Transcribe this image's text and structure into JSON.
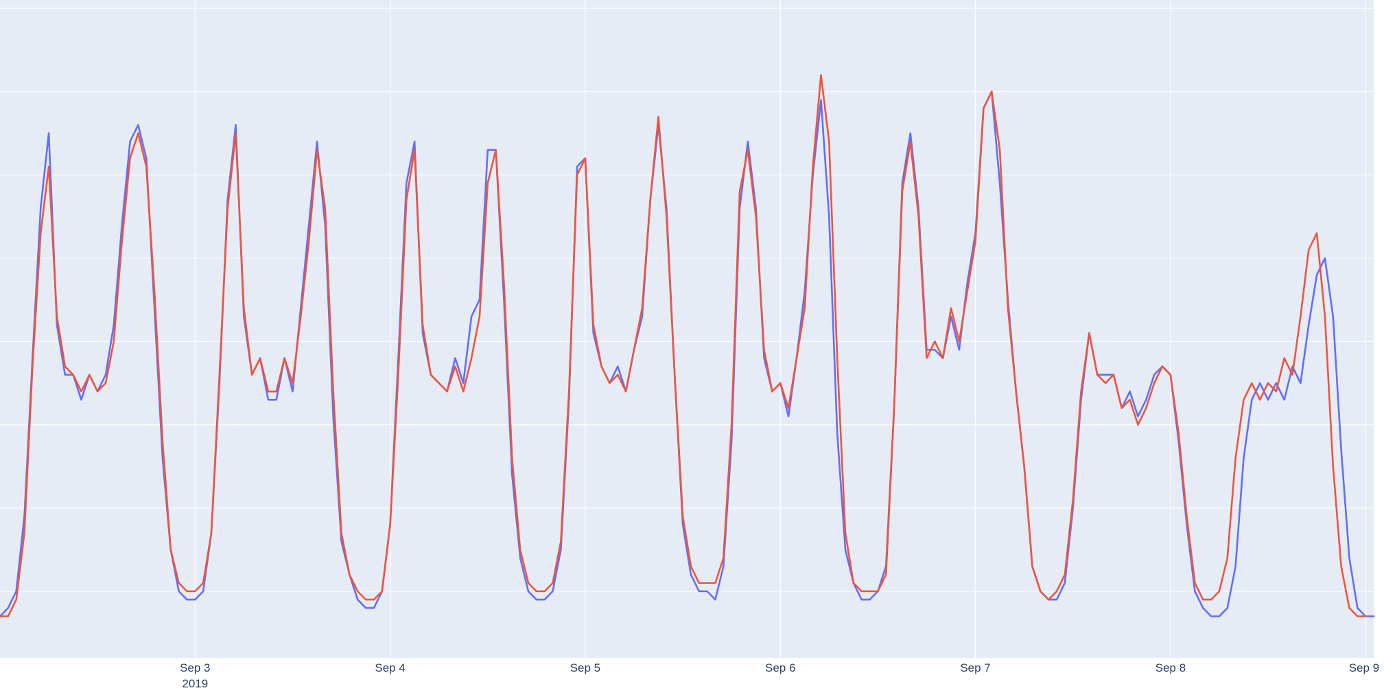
{
  "chart_data": {
    "type": "line",
    "title": "",
    "xlabel": "",
    "ylabel": "",
    "x_start": "2019-09-02T00:00",
    "x_step_hours": 1,
    "xlim": [
      "2019-09-02T00:00",
      "2019-09-09T01:00"
    ],
    "ylim": [
      0.2,
      8.1
    ],
    "y_gridlines": [
      1,
      2,
      3,
      4,
      5,
      6,
      7,
      8
    ],
    "y_tick_labels_shown": false,
    "x_ticks": [
      {
        "date": "2019-09-03",
        "label": "Sep 3",
        "sublabel": "2019"
      },
      {
        "date": "2019-09-04",
        "label": "Sep 4",
        "sublabel": ""
      },
      {
        "date": "2019-09-05",
        "label": "Sep 5",
        "sublabel": ""
      },
      {
        "date": "2019-09-06",
        "label": "Sep 6",
        "sublabel": ""
      },
      {
        "date": "2019-09-07",
        "label": "Sep 7",
        "sublabel": ""
      },
      {
        "date": "2019-09-08",
        "label": "Sep 8",
        "sublabel": ""
      },
      {
        "date": "2019-09-09",
        "label": "Sep 9",
        "sublabel": ""
      }
    ],
    "grid": true,
    "legend": "none",
    "plot_background": "#e5ecf6",
    "grid_color": "#ffffff",
    "series": [
      {
        "color": "#636efa",
        "values": [
          0.7,
          0.8,
          1.0,
          1.9,
          3.8,
          5.6,
          6.5,
          4.2,
          3.6,
          3.6,
          3.3,
          3.6,
          3.4,
          3.6,
          4.2,
          5.4,
          6.4,
          6.6,
          6.2,
          4.4,
          2.6,
          1.5,
          1.0,
          0.9,
          0.9,
          1.0,
          1.7,
          3.5,
          5.7,
          6.6,
          4.3,
          3.6,
          3.8,
          3.3,
          3.3,
          3.8,
          3.4,
          4.4,
          5.4,
          6.4,
          5.4,
          3.1,
          1.6,
          1.2,
          0.9,
          0.8,
          0.8,
          1.0,
          1.8,
          3.8,
          5.9,
          6.4,
          4.1,
          3.6,
          3.5,
          3.4,
          3.8,
          3.5,
          4.3,
          4.5,
          6.3,
          6.3,
          4.5,
          2.4,
          1.4,
          1.0,
          0.9,
          0.9,
          1.0,
          1.5,
          3.3,
          6.1,
          6.2,
          4.1,
          3.7,
          3.5,
          3.7,
          3.4,
          3.9,
          4.3,
          5.7,
          6.6,
          5.6,
          3.6,
          1.8,
          1.2,
          1.0,
          1.0,
          0.9,
          1.3,
          2.8,
          5.6,
          6.4,
          5.6,
          3.8,
          3.4,
          3.5,
          3.1,
          3.8,
          4.6,
          6.0,
          6.9,
          5.5,
          2.9,
          1.5,
          1.1,
          0.9,
          0.9,
          1.0,
          1.3,
          3.2,
          5.9,
          6.5,
          5.6,
          3.9,
          3.9,
          3.8,
          4.3,
          3.9,
          4.7,
          5.3,
          6.8,
          7.0,
          5.9,
          4.5,
          3.4,
          2.5,
          1.3,
          1.0,
          0.9,
          0.9,
          1.1,
          2.0,
          3.3,
          4.1,
          3.6,
          3.6,
          3.6,
          3.2,
          3.4,
          3.1,
          3.3,
          3.6,
          3.7,
          3.6,
          2.8,
          1.8,
          1.0,
          0.8,
          0.7,
          0.7,
          0.8,
          1.3,
          2.6,
          3.3,
          3.5,
          3.3,
          3.5,
          3.3,
          3.7,
          3.5,
          4.2,
          4.8,
          5.0,
          4.3,
          2.7,
          1.4,
          0.8,
          0.7,
          0.7
        ]
      },
      {
        "color": "#ef553b",
        "values": [
          0.7,
          0.7,
          0.9,
          1.7,
          3.7,
          5.3,
          6.1,
          4.3,
          3.7,
          3.6,
          3.4,
          3.6,
          3.4,
          3.5,
          4.0,
          5.2,
          6.2,
          6.5,
          6.1,
          4.6,
          2.8,
          1.5,
          1.1,
          1.0,
          1.0,
          1.1,
          1.7,
          3.6,
          5.6,
          6.5,
          4.4,
          3.6,
          3.8,
          3.4,
          3.4,
          3.8,
          3.5,
          4.3,
          5.2,
          6.3,
          5.6,
          3.4,
          1.7,
          1.2,
          1.0,
          0.9,
          0.9,
          1.0,
          1.8,
          3.6,
          5.7,
          6.3,
          4.2,
          3.6,
          3.5,
          3.4,
          3.7,
          3.4,
          3.8,
          4.3,
          5.9,
          6.3,
          4.7,
          2.6,
          1.5,
          1.1,
          1.0,
          1.0,
          1.1,
          1.6,
          3.4,
          6.0,
          6.2,
          4.2,
          3.7,
          3.5,
          3.6,
          3.4,
          3.9,
          4.4,
          5.7,
          6.7,
          5.5,
          3.6,
          1.9,
          1.3,
          1.1,
          1.1,
          1.1,
          1.4,
          3.0,
          5.8,
          6.3,
          5.5,
          3.9,
          3.4,
          3.5,
          3.2,
          3.8,
          4.4,
          6.1,
          7.2,
          6.4,
          3.8,
          1.7,
          1.1,
          1.0,
          1.0,
          1.0,
          1.2,
          3.2,
          5.8,
          6.4,
          5.5,
          3.8,
          4.0,
          3.8,
          4.4,
          4.0,
          4.6,
          5.2,
          6.8,
          7.0,
          6.3,
          4.4,
          3.4,
          2.5,
          1.3,
          1.0,
          0.9,
          1.0,
          1.2,
          2.1,
          3.4,
          4.1,
          3.6,
          3.5,
          3.6,
          3.2,
          3.3,
          3.0,
          3.2,
          3.5,
          3.7,
          3.6,
          2.9,
          1.9,
          1.1,
          0.9,
          0.9,
          1.0,
          1.4,
          2.6,
          3.3,
          3.5,
          3.3,
          3.5,
          3.4,
          3.8,
          3.6,
          4.3,
          5.1,
          5.3,
          4.3,
          2.5,
          1.3,
          0.8,
          0.7,
          0.7
        ]
      }
    ]
  }
}
